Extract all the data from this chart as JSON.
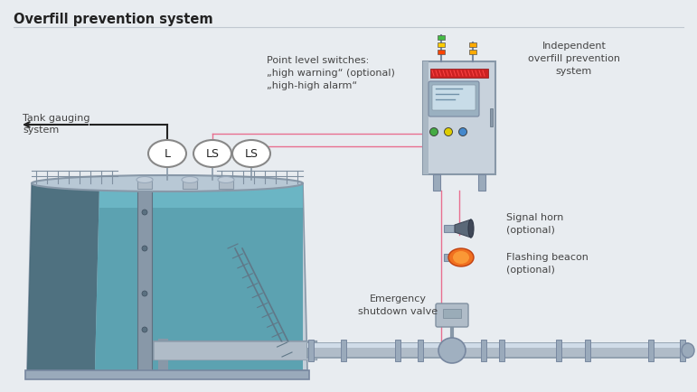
{
  "title": "Overfill prevention system",
  "bg_color": "#e8ecf0",
  "title_color": "#222222",
  "line_color": "#c0c8d0",
  "text_color": "#444444",
  "signal_line_color": "#e87090",
  "tank_outer_color": "#c0cdd8",
  "tank_liquid_dark": "#2a6878",
  "tank_liquid_mid": "#3a8898",
  "tank_liquid_light": "#5aacbb",
  "tank_wall_color": "#9aaabb",
  "tank_wall_dark": "#607888",
  "pipe_color": "#b0bcc8",
  "pipe_edge_color": "#8898a8",
  "cabinet_color": "#c0cad4",
  "cabinet_edge": "#8898a8",
  "labels": {
    "tank_gauging": "Tank gauging\nsystem",
    "point_level": "Point level switches:\n„high warning“ (optional)\n„high-high alarm“",
    "independent": "Independent\noverfill prevention\nsystem",
    "signal_horn": "Signal horn\n(optional)",
    "flashing_beacon": "Flashing beacon\n(optional)",
    "emergency_shutdown": "Emergency\nshutdown valve"
  }
}
